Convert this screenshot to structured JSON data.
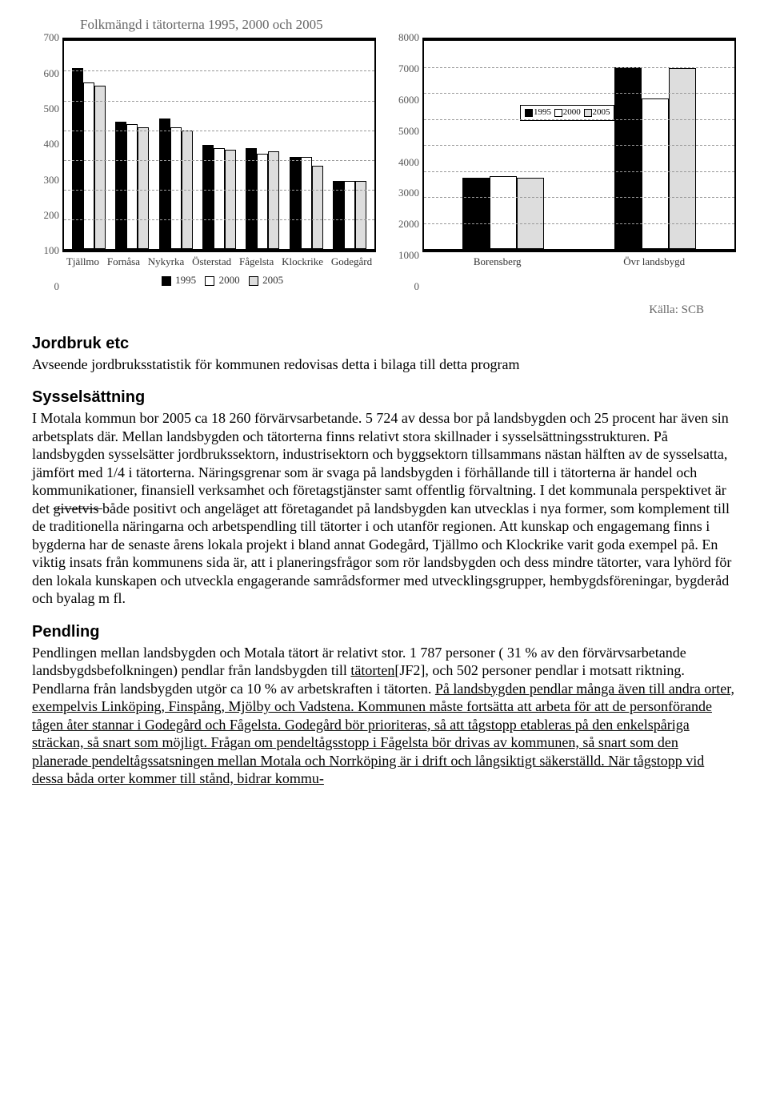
{
  "chart_title": "Folkmängd i tätorterna 1995, 2000 och 2005",
  "chart_left": {
    "ymax": 700,
    "ytick_step": 100,
    "categories": [
      "Tjällmo",
      "Fornåsa",
      "Nykyrka",
      "Österstad",
      "Fågelsta",
      "Klockrike",
      "Godegård"
    ],
    "series": [
      {
        "label": "1995",
        "color": "#000000",
        "values": [
          610,
          430,
          440,
          350,
          340,
          310,
          230
        ]
      },
      {
        "label": "2000",
        "color": "#ffffff",
        "values": [
          560,
          420,
          410,
          340,
          320,
          310,
          230
        ]
      },
      {
        "label": "2005",
        "color": "#dddddd",
        "values": [
          550,
          410,
          400,
          335,
          330,
          280,
          230
        ]
      }
    ],
    "grid_color": "#999999",
    "axis_fontsize": 13
  },
  "chart_right": {
    "ymax": 8000,
    "ytick_step": 1000,
    "categories": [
      "Borensberg",
      "Övr landsbygd"
    ],
    "series": [
      {
        "label": "1995",
        "color": "#000000",
        "values": [
          2750,
          7000
        ]
      },
      {
        "label": "2000",
        "color": "#ffffff",
        "values": [
          2800,
          5800
        ]
      },
      {
        "label": "2005",
        "color": "#dddddd",
        "values": [
          2750,
          6950
        ]
      }
    ],
    "grid_color": "#999999",
    "axis_fontsize": 13,
    "inline_legend": "1995  2000  2005"
  },
  "legend_line": "1995   2000   2005",
  "source": "Källa: SCB",
  "sections": {
    "jordbruk": {
      "heading": "Jordbruk etc",
      "body": "Avseende jordbruksstatistik för kommunen redovisas detta i bilaga till detta program"
    },
    "sysselsattning": {
      "heading": "Sysselsättning",
      "body_pre": "I Motala kommun bor 2005 ca 18 260 förvärvsarbetande. 5 724 av dessa bor på landsbygden och 25 procent har även sin arbetsplats där. Mellan landsbygden och tätorterna finns relativt stora skillnader i sysselsättningsstrukturen. På landsbygden sysselsätter jordbrukssektorn, industrisektorn och byggsektorn tillsammans nästan hälften av de sysselsatta, jämfört med 1/4 i tätorterna. Näringsgrenar som är svaga på landsbygden i förhållande till i tätorterna är handel och kommunikationer, finansiell verksamhet och företagstjänster samt offentlig förvaltning. I det kommunala perspektivet är det ",
      "strike": "givetvis ",
      "body_post": "både positivt och angeläget att företagandet på landsbygden kan utvecklas i nya former, som komplement till de traditionella näringarna och arbetspendling till tätorter i och utanför regionen. Att kunskap och engagemang finns i bygderna har de senaste årens lokala projekt i bland annat Godegård, Tjällmo och Klockrike varit goda exempel på. En viktig insats från kommunens sida är, att i planeringsfrågor som rör landsbygden och dess mindre tätorter, vara lyhörd för den lokala kunskapen och utveckla engagerande samrådsformer med utvecklingsgrupper, hembygdsföreningar, bygderåd och byalag m fl."
    },
    "pendling": {
      "heading": "Pendling",
      "p1_a": "Pendlingen mellan landsbygden och Motala tätort är relativt stor. 1 787 personer ( 31 % av den förvärvsarbetande landsbygdsbefolkningen) pendlar från landsbygden till ",
      "p1_u1": "tätorten",
      "p1_ref": "[JF2]",
      "p1_b": ", och 502 personer pendlar i motsatt riktning. Pendlarna från landsbygden utgör ca 10 % av arbetskraften i tätorten. ",
      "p1_u2": "På landsbygden pendlar många även till andra orter, exempelvis Linköping, Finspång, Mjölby och Vadstena. Kommunen måste fortsätta att arbeta för att de personförande tågen åter stannar i Godegård och Fågelsta. Godegård bör prioriteras, så att tågstopp etableras på den enkelspåriga sträckan, så snart som möjligt. Frågan om pendeltågsstopp i Fågelsta bör drivas av kommunen, så snart som den planerade pendeltågssatsningen mellan Motala och Norrköping är i drift och långsiktigt säkerställd. När tågstopp vid dessa båda orter kommer till stånd, bidrar kommu-"
    }
  }
}
